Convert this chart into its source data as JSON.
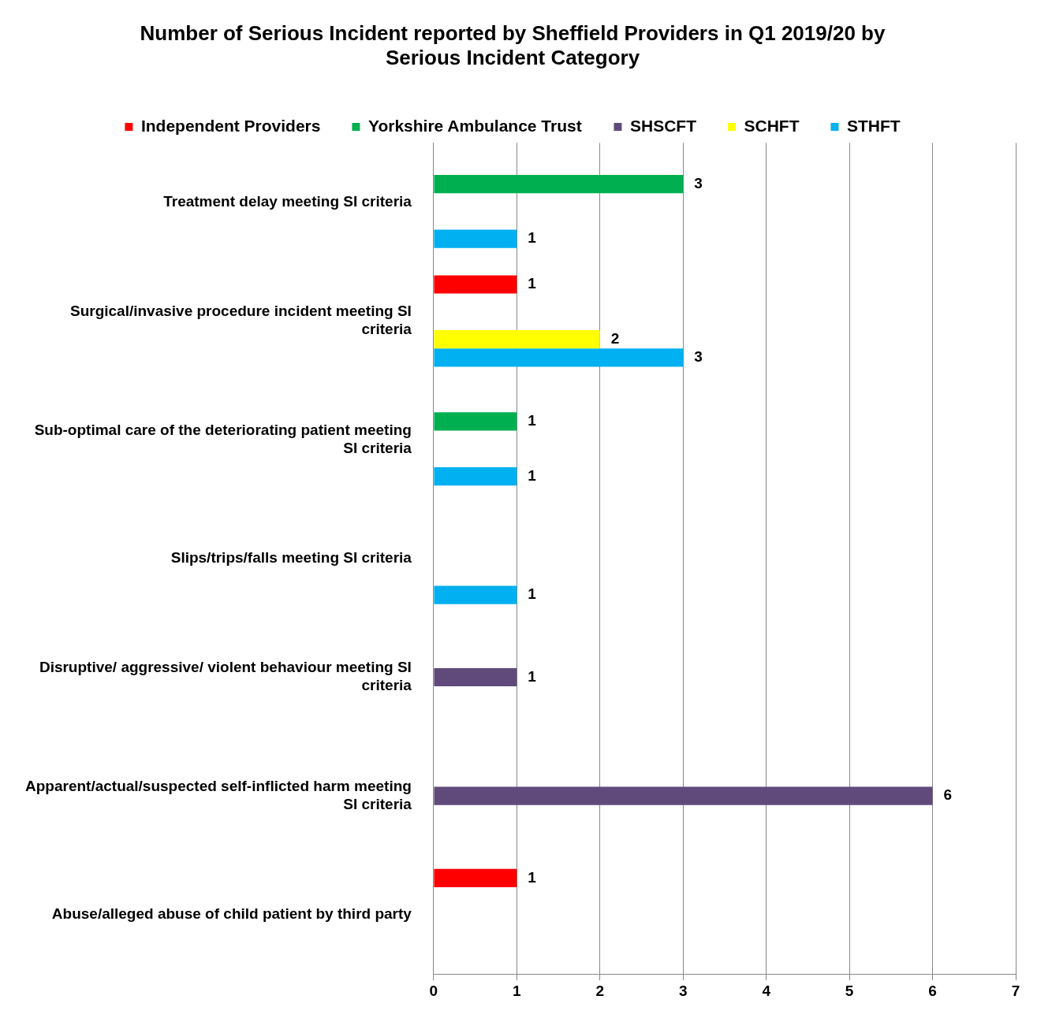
{
  "chart_data": {
    "type": "bar",
    "orientation": "horizontal",
    "title": "Number of Serious Incident reported by Sheffield Providers in Q1 2019/20 by Serious Incident Category",
    "categories": [
      "Treatment delay meeting SI criteria",
      "Surgical/invasive procedure incident meeting SI criteria",
      "Sub-optimal care of the deteriorating patient meeting SI criteria",
      "Slips/trips/falls meeting SI criteria",
      "Disruptive/ aggressive/ violent behaviour meeting SI criteria",
      "Apparent/actual/suspected self-inflicted harm meeting SI criteria",
      "Abuse/alleged abuse of child patient by third party"
    ],
    "series": [
      {
        "name": "Independent Providers",
        "color": "#ff0000",
        "values": [
          null,
          1,
          null,
          null,
          null,
          null,
          1
        ]
      },
      {
        "name": "Yorkshire Ambulance Trust",
        "color": "#00b050",
        "values": [
          3,
          null,
          1,
          null,
          null,
          null,
          null
        ]
      },
      {
        "name": "SHSCFT",
        "color": "#604a7b",
        "values": [
          null,
          null,
          null,
          null,
          1,
          6,
          null
        ]
      },
      {
        "name": "SCHFT",
        "color": "#ffff00",
        "values": [
          null,
          2,
          null,
          null,
          null,
          null,
          null
        ]
      },
      {
        "name": "STHFT",
        "color": "#00b0f0",
        "values": [
          1,
          3,
          1,
          1,
          null,
          null,
          null
        ]
      }
    ],
    "xlim": [
      0,
      7
    ],
    "xticks": [
      0,
      1,
      2,
      3,
      4,
      5,
      6,
      7
    ],
    "grid": "x",
    "legend": "top",
    "data_labels": true
  }
}
